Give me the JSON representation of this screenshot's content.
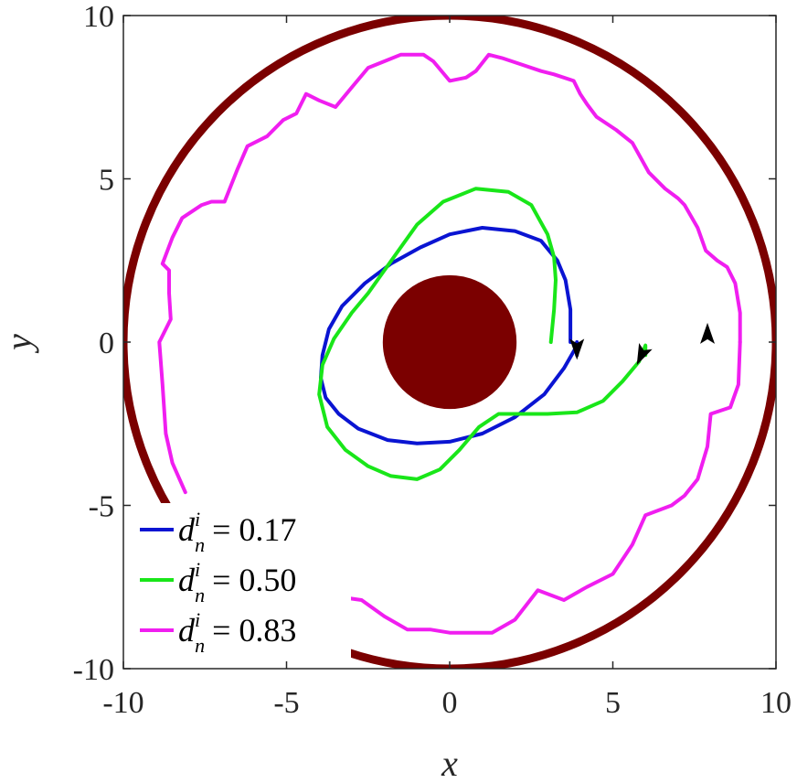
{
  "chart_data": {
    "type": "line",
    "title": "",
    "xlabel": "x",
    "ylabel": "y",
    "xlim": [
      -10,
      10
    ],
    "ylim": [
      -10,
      10
    ],
    "xticks": [
      "-10",
      "-5",
      "0",
      "5",
      "10"
    ],
    "yticks": [
      "-10",
      "-5",
      "0",
      "5",
      "10"
    ],
    "grid": false,
    "legend_position": "bottom-left",
    "shapes": {
      "outer_wall": {
        "type": "circle",
        "center": [
          0,
          0
        ],
        "radius": 10,
        "color": "#7b0000",
        "filled": false
      },
      "inner_obstacle": {
        "type": "circle",
        "center": [
          0,
          0
        ],
        "radius": 2.05,
        "color": "#7b0000",
        "filled": true
      }
    },
    "series": [
      {
        "name": "d_n^i = 0.17",
        "legend_var": "d",
        "legend_sup": "i",
        "legend_sub": "n",
        "legend_value": "= 0.17",
        "color": "#0a14d2",
        "x": [
          3.7,
          3.7,
          3.55,
          3.3,
          2.8,
          2.0,
          1.0,
          0.0,
          -0.9,
          -1.8,
          -2.6,
          -3.3,
          -3.7,
          -3.9,
          -3.95,
          -3.8,
          -3.4,
          -2.8,
          -1.9,
          -1.0,
          0.0,
          1.0,
          2.0,
          2.9,
          3.5,
          3.85,
          3.9,
          3.9
        ],
        "y": [
          0.0,
          1.0,
          1.9,
          2.5,
          3.1,
          3.4,
          3.5,
          3.3,
          2.9,
          2.4,
          1.8,
          1.1,
          0.4,
          -0.4,
          -1.1,
          -1.7,
          -2.2,
          -2.65,
          -3.0,
          -3.1,
          -3.05,
          -2.8,
          -2.3,
          -1.6,
          -0.8,
          -0.2,
          0.0,
          -0.4
        ]
      },
      {
        "name": "d_n^i = 0.50",
        "legend_var": "d",
        "legend_sup": "i",
        "legend_sub": "n",
        "legend_value": "= 0.50",
        "color": "#19e619",
        "x": [
          3.1,
          3.2,
          3.25,
          3.2,
          3.0,
          2.5,
          1.8,
          0.8,
          -0.2,
          -1.0,
          -1.5,
          -2.0,
          -2.5,
          -3.0,
          -3.55,
          -3.9,
          -4.0,
          -3.75,
          -3.2,
          -2.5,
          -1.8,
          -1.0,
          -0.3,
          0.3,
          0.9,
          1.5,
          2.2,
          3.0,
          3.9,
          4.7,
          5.3,
          5.8,
          6.0,
          6.0
        ],
        "y": [
          0.0,
          1.0,
          1.9,
          2.6,
          3.3,
          4.2,
          4.6,
          4.7,
          4.3,
          3.6,
          2.9,
          2.2,
          1.5,
          0.9,
          0.1,
          -0.7,
          -1.6,
          -2.6,
          -3.3,
          -3.8,
          -4.1,
          -4.2,
          -3.9,
          -3.3,
          -2.6,
          -2.2,
          -2.2,
          -2.2,
          -2.15,
          -1.8,
          -1.2,
          -0.6,
          -0.1,
          -0.4
        ]
      },
      {
        "name": "d_n^i = 0.83",
        "legend_var": "d",
        "legend_sup": "i",
        "legend_sub": "n",
        "legend_value": "= 0.83",
        "color": "#f01ef0",
        "x": [
          8.9,
          8.85,
          8.6,
          8.0,
          7.9,
          7.6,
          7.2,
          6.8,
          6.0,
          5.6,
          5.0,
          4.2,
          3.5,
          2.7,
          2.0,
          1.3,
          0.6,
          0.0,
          -0.6,
          -1.3,
          -2.0,
          -2.7,
          -3.4,
          -4.1,
          -4.8,
          -5.5,
          -6.3,
          -7.0,
          -7.6,
          -8.0
        ],
        "y": [
          0.0,
          -1.3,
          -2.0,
          -2.2,
          -3.2,
          -4.2,
          -4.7,
          -5.0,
          -5.3,
          -6.2,
          -7.1,
          -7.5,
          -7.9,
          -7.6,
          -8.5,
          -8.9,
          -8.9,
          -8.9,
          -8.8,
          -8.8,
          -8.4,
          -7.9,
          -7.8,
          -8.5,
          -8.3,
          -7.8,
          -7.3,
          -6.7,
          -6.1,
          -5.6
        ]
      },
      {
        "name": "d_n^i = 0.83 (upper)",
        "legend": false,
        "color": "#f01ef0",
        "x": [
          -8.1,
          -8.5,
          -8.7,
          -8.8,
          -8.9,
          -8.55,
          -8.6,
          -8.6,
          -8.8,
          -8.5,
          -8.2,
          -7.6,
          -7.3,
          -6.9,
          -6.5,
          -6.2,
          -5.6,
          -5.1,
          -4.7,
          -4.4,
          -4.0,
          -3.5,
          -3.0,
          -2.5,
          -2.0,
          -1.5,
          -0.8,
          -0.5,
          0.0,
          0.5,
          0.8,
          1.2,
          1.6,
          2.2,
          2.8,
          3.2,
          3.8,
          4.0,
          4.2,
          4.5,
          5.1,
          5.6,
          6.1,
          6.6,
          7.0,
          7.2,
          7.6,
          7.85,
          8.2,
          8.5,
          8.75,
          8.9,
          8.9
        ],
        "y": [
          -4.6,
          -3.7,
          -2.8,
          -1.3,
          0.0,
          0.7,
          1.5,
          2.2,
          2.4,
          3.2,
          3.8,
          4.2,
          4.3,
          4.3,
          5.3,
          6.0,
          6.3,
          6.8,
          7.0,
          7.6,
          7.4,
          7.2,
          7.8,
          8.4,
          8.6,
          8.8,
          8.8,
          8.6,
          8.0,
          8.1,
          8.3,
          8.8,
          8.7,
          8.5,
          8.3,
          8.2,
          8.0,
          7.6,
          7.3,
          6.9,
          6.5,
          6.1,
          5.2,
          4.7,
          4.4,
          4.2,
          3.5,
          2.8,
          2.5,
          2.3,
          1.8,
          0.9,
          0.0
        ]
      }
    ],
    "arrows": [
      {
        "x": 3.9,
        "y": -0.15,
        "direction": "down",
        "color": "#000000"
      },
      {
        "x": 5.9,
        "y": -0.35,
        "direction": "down-left",
        "color": "#000000"
      },
      {
        "x": 7.9,
        "y": 0.2,
        "direction": "up",
        "color": "#000000"
      }
    ]
  }
}
